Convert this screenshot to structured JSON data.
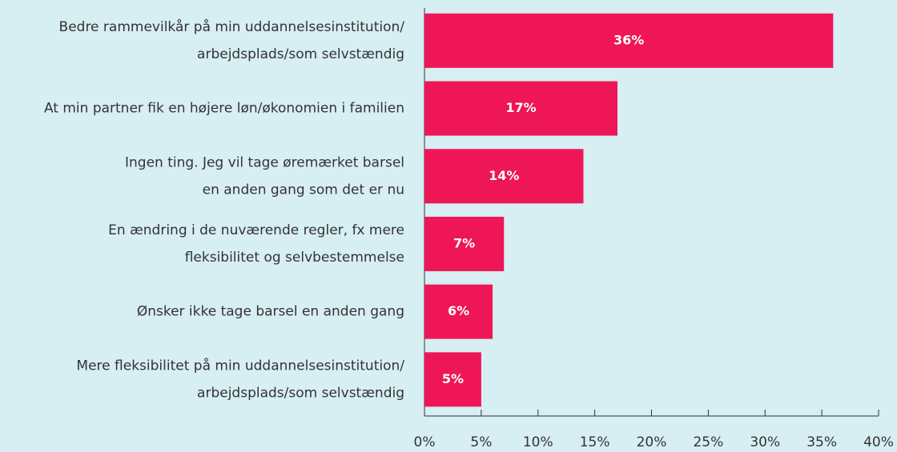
{
  "chart_data": {
    "type": "barh",
    "categories": [
      [
        "Bedre rammevilkår på min uddannelsesinstitution/",
        "arbejdsplads/som selvstændig"
      ],
      [
        "At min partner fik en højere løn/økonomien i familien"
      ],
      [
        "Ingen ting. Jeg vil tage øremærket barsel",
        "en anden gang som det er nu"
      ],
      [
        "En ændring i de nuværende regler, fx mere",
        "fleksibilitet og selvbestemmelse"
      ],
      [
        "Ønsker ikke tage barsel en anden gang"
      ],
      [
        "Mere fleksibilitet på min uddannelsesinstitution/",
        "arbejdsplads/som selvstændig"
      ]
    ],
    "values": [
      36,
      17,
      14,
      7,
      6,
      5
    ],
    "value_labels": [
      "36%",
      "17%",
      "14%",
      "7%",
      "6%",
      "5%"
    ],
    "color": "#ee1656",
    "xlim": [
      0,
      40
    ],
    "xticks": [
      {
        "value": 0,
        "label": "0%"
      },
      {
        "value": 5,
        "label": "5%"
      },
      {
        "value": 10,
        "label": "10%"
      },
      {
        "value": 15,
        "label": "15%"
      },
      {
        "value": 20,
        "label": "20%"
      },
      {
        "value": 25,
        "label": "25%"
      },
      {
        "value": 30,
        "label": "30%"
      },
      {
        "value": 35,
        "label": "35%"
      },
      {
        "value": 40,
        "label": "40%"
      }
    ]
  }
}
